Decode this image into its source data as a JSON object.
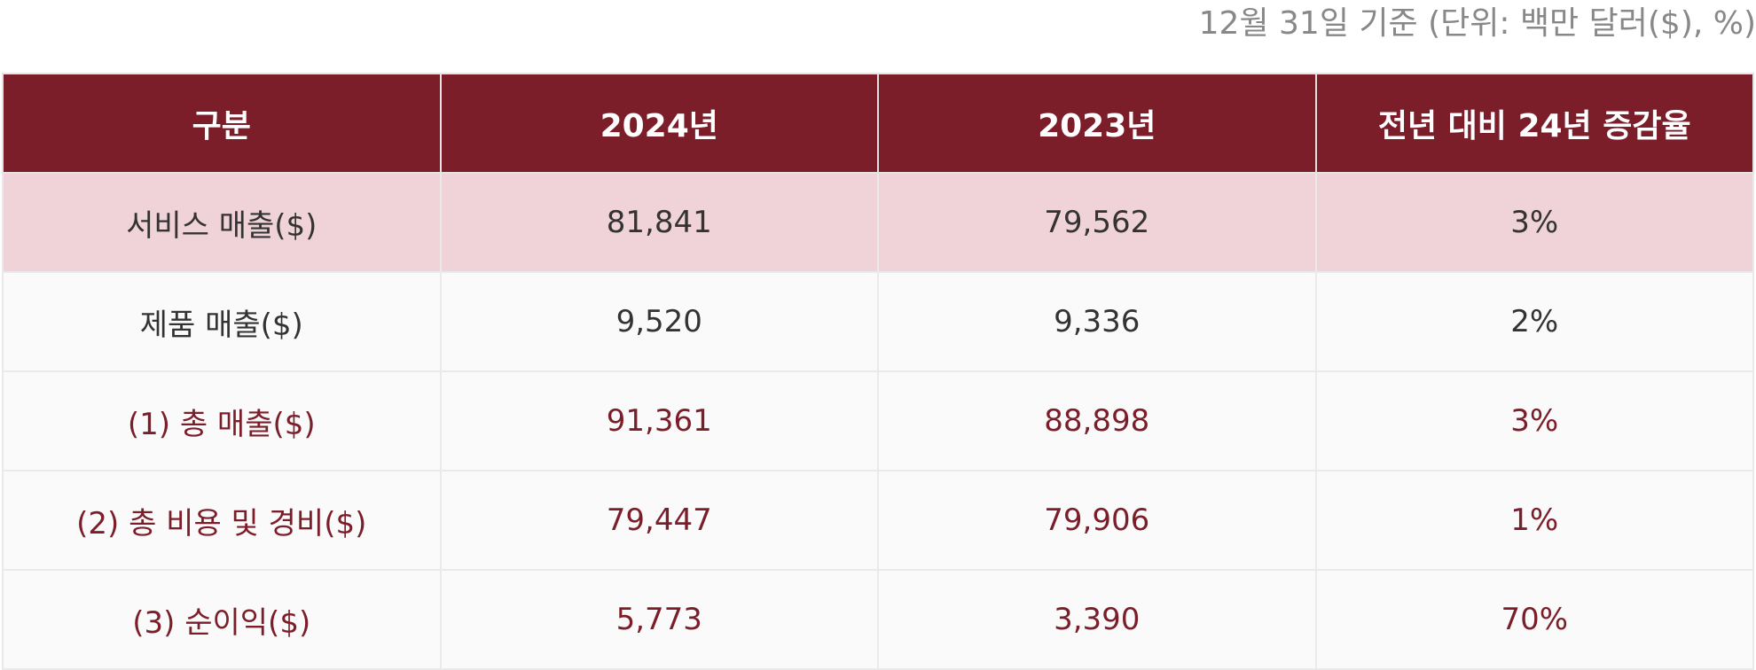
{
  "note": "12월 31일 기준 (단위: 백만 달러($), %)",
  "table": {
    "headers": [
      "구분",
      "2024년",
      "2023년",
      "전년 대비 24년 증감율"
    ],
    "rows": [
      {
        "category": "서비스 매출($)",
        "y2024": "81,841",
        "y2023": "79,562",
        "change": "3%"
      },
      {
        "category": "제품 매출($)",
        "y2024": "9,520",
        "y2023": "9,336",
        "change": "2%"
      },
      {
        "category": "(1) 총 매출($)",
        "y2024": "91,361",
        "y2023": "88,898",
        "change": "3%"
      },
      {
        "category": "(2) 총 비용 및 경비($)",
        "y2024": "79,447",
        "y2023": "79,906",
        "change": "1%"
      },
      {
        "category": "(3) 순이익($)",
        "y2024": "5,773",
        "y2023": "3,390",
        "change": "70%"
      }
    ]
  },
  "colors": {
    "header_bg": "#7b1e2a",
    "highlight_bg": "#f0d3d8",
    "accent_text": "#7b1e2a"
  }
}
